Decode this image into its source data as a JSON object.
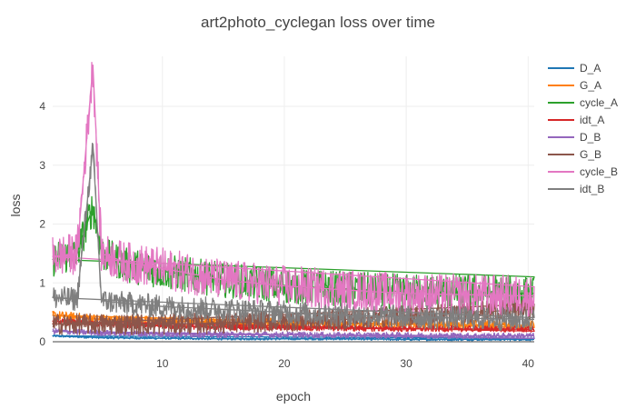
{
  "chart_data": {
    "type": "line",
    "title": "art2photo_cyclegan loss over time",
    "xlabel": "epoch",
    "ylabel": "loss",
    "xlim": [
      1,
      40.5
    ],
    "ylim": [
      0,
      4.85
    ],
    "x_ticks": [
      10,
      20,
      30,
      40
    ],
    "y_ticks": [
      0,
      1,
      2,
      3,
      4
    ],
    "grid": true,
    "legend_position": "top-right",
    "series": [
      {
        "name": "D_A",
        "color": "#1f77b4",
        "points": [
          [
            1,
            0.1
          ],
          [
            5,
            0.07
          ],
          [
            10,
            0.06
          ],
          [
            15,
            0.05
          ],
          [
            20,
            0.05
          ],
          [
            25,
            0.05
          ],
          [
            30,
            0.04
          ],
          [
            35,
            0.04
          ],
          [
            40.5,
            0.04
          ]
        ]
      },
      {
        "name": "G_A",
        "color": "#ff7f0e",
        "points": [
          [
            1,
            0.45
          ],
          [
            5,
            0.38
          ],
          [
            10,
            0.35
          ],
          [
            15,
            0.33
          ],
          [
            20,
            0.32
          ],
          [
            25,
            0.3
          ],
          [
            30,
            0.3
          ],
          [
            35,
            0.29
          ],
          [
            40.5,
            0.28
          ]
        ]
      },
      {
        "name": "cycle_A",
        "color": "#2ca02c",
        "points": [
          [
            1,
            1.4
          ],
          [
            3,
            1.5
          ],
          [
            4.3,
            2.3
          ],
          [
            5,
            1.5
          ],
          [
            7,
            1.3
          ],
          [
            10,
            1.2
          ],
          [
            15,
            1.05
          ],
          [
            20,
            0.95
          ],
          [
            25,
            0.9
          ],
          [
            30,
            0.85
          ],
          [
            35,
            0.85
          ],
          [
            40.5,
            0.82
          ]
        ]
      },
      {
        "name": "idt_A",
        "color": "#d62728",
        "points": [
          [
            1,
            0.35
          ],
          [
            5,
            0.3
          ],
          [
            10,
            0.27
          ],
          [
            15,
            0.25
          ],
          [
            20,
            0.24
          ],
          [
            25,
            0.23
          ],
          [
            30,
            0.22
          ],
          [
            35,
            0.22
          ],
          [
            40.5,
            0.21
          ]
        ]
      },
      {
        "name": "D_B",
        "color": "#9467bd",
        "points": [
          [
            1,
            0.18
          ],
          [
            5,
            0.15
          ],
          [
            10,
            0.13
          ],
          [
            15,
            0.12
          ],
          [
            20,
            0.12
          ],
          [
            25,
            0.11
          ],
          [
            30,
            0.11
          ],
          [
            35,
            0.1
          ],
          [
            40.5,
            0.1
          ]
        ]
      },
      {
        "name": "G_B",
        "color": "#8c564b",
        "points": [
          [
            1,
            0.3
          ],
          [
            5,
            0.3
          ],
          [
            10,
            0.3
          ],
          [
            15,
            0.32
          ],
          [
            20,
            0.35
          ],
          [
            25,
            0.38
          ],
          [
            30,
            0.45
          ],
          [
            35,
            0.5
          ],
          [
            40.5,
            0.55
          ]
        ]
      },
      {
        "name": "cycle_B",
        "color": "#e377c2",
        "points": [
          [
            1,
            1.45
          ],
          [
            3,
            1.5
          ],
          [
            4.3,
            4.7
          ],
          [
            5,
            1.5
          ],
          [
            7,
            1.35
          ],
          [
            10,
            1.25
          ],
          [
            15,
            1.05
          ],
          [
            20,
            0.95
          ],
          [
            25,
            0.88
          ],
          [
            30,
            0.82
          ],
          [
            35,
            0.8
          ],
          [
            40.5,
            0.78
          ]
        ]
      },
      {
        "name": "idt_B",
        "color": "#7f7f7f",
        "points": [
          [
            1,
            0.75
          ],
          [
            3,
            0.72
          ],
          [
            4.3,
            3.3
          ],
          [
            5,
            0.7
          ],
          [
            7,
            0.65
          ],
          [
            10,
            0.6
          ],
          [
            15,
            0.55
          ],
          [
            20,
            0.5
          ],
          [
            25,
            0.45
          ],
          [
            30,
            0.42
          ],
          [
            35,
            0.4
          ],
          [
            40.5,
            0.38
          ]
        ]
      }
    ]
  }
}
